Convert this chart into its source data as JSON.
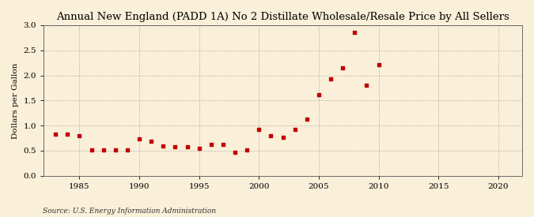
{
  "title": "Annual New England (PADD 1A) No 2 Distillate Wholesale/Resale Price by All Sellers",
  "ylabel": "Dollars per Gallon",
  "source": "Source: U.S. Energy Information Administration",
  "background_color": "#faefd8",
  "plot_bg_color": "#faefd8",
  "marker_color": "#c00000",
  "years": [
    1983,
    1984,
    1985,
    1986,
    1987,
    1988,
    1989,
    1990,
    1991,
    1992,
    1993,
    1994,
    1995,
    1996,
    1997,
    1998,
    1999,
    2000,
    2001,
    2002,
    2003,
    2004,
    2005,
    2006,
    2007,
    2008,
    2009,
    2010
  ],
  "values": [
    0.83,
    0.83,
    0.8,
    0.51,
    0.52,
    0.51,
    0.52,
    0.74,
    0.68,
    0.6,
    0.57,
    0.57,
    0.55,
    0.63,
    0.63,
    0.47,
    0.51,
    0.92,
    0.79,
    0.76,
    0.93,
    1.12,
    1.61,
    1.93,
    2.15,
    2.85,
    1.81,
    2.22
  ],
  "xlim": [
    1982,
    2022
  ],
  "ylim": [
    0.0,
    3.0
  ],
  "xticks": [
    1985,
    1990,
    1995,
    2000,
    2005,
    2010,
    2015,
    2020
  ],
  "yticks": [
    0.0,
    0.5,
    1.0,
    1.5,
    2.0,
    2.5,
    3.0
  ],
  "title_fontsize": 9.5,
  "label_fontsize": 7.5,
  "tick_fontsize": 7.5,
  "source_fontsize": 6.5
}
